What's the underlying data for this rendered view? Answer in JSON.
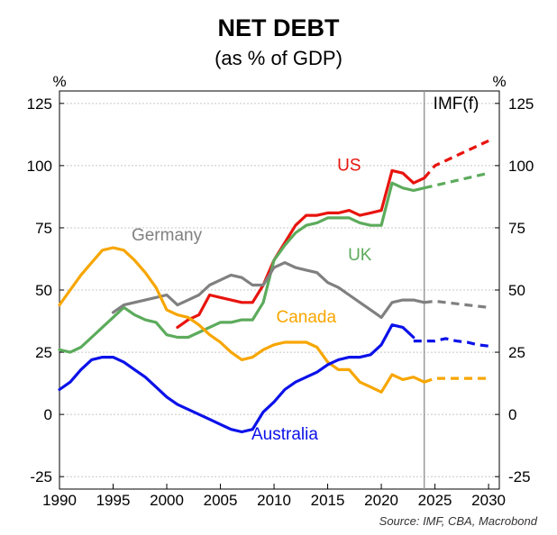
{
  "chart_data": {
    "type": "line",
    "title": "NET DEBT",
    "subtitle": "(as % of GDP)",
    "y_unit_left": "%",
    "y_unit_right": "%",
    "ylim": [
      -30,
      130
    ],
    "yticks": [
      125,
      100,
      75,
      50,
      25,
      0,
      -25
    ],
    "xlim": [
      1990,
      2031
    ],
    "xticks": [
      1990,
      1995,
      2000,
      2005,
      2010,
      2015,
      2020,
      2025,
      2030
    ],
    "grid": true,
    "forecast_start": 2024,
    "forecast_label": "IMF(f)",
    "source": "Source: IMF, CBA, Macrobond",
    "series": [
      {
        "name": "US",
        "color": "#e8140e",
        "label_at": [
          2017,
          98
        ],
        "x": [
          2001,
          2002,
          2003,
          2004,
          2005,
          2006,
          2007,
          2008,
          2009,
          2010,
          2011,
          2012,
          2013,
          2014,
          2015,
          2016,
          2017,
          2018,
          2019,
          2020,
          2021,
          2022,
          2023,
          2024
        ],
        "y": [
          35,
          38,
          40,
          48,
          47,
          46,
          45,
          45,
          52,
          62,
          69,
          76,
          80,
          80,
          81,
          81,
          82,
          80,
          81,
          82,
          98,
          97,
          93,
          95
        ],
        "forecast_x": [
          2024,
          2025,
          2026,
          2027,
          2028,
          2029,
          2030
        ],
        "forecast_y": [
          95,
          100,
          102,
          104,
          106,
          108,
          110
        ]
      },
      {
        "name": "UK",
        "color": "#5cab5c",
        "label_at": [
          2018,
          62
        ],
        "x": [
          1990,
          1991,
          1992,
          1993,
          1994,
          1995,
          1996,
          1997,
          1998,
          1999,
          2000,
          2001,
          2002,
          2003,
          2004,
          2005,
          2006,
          2007,
          2008,
          2009,
          2010,
          2011,
          2012,
          2013,
          2014,
          2015,
          2016,
          2017,
          2018,
          2019,
          2020,
          2021,
          2022,
          2023,
          2024
        ],
        "y": [
          26,
          25,
          27,
          31,
          35,
          39,
          43,
          40,
          38,
          37,
          32,
          31,
          31,
          33,
          35,
          37,
          37,
          38,
          38,
          45,
          62,
          68,
          73,
          76,
          77,
          79,
          79,
          79,
          77,
          76,
          76,
          93,
          91,
          90,
          91
        ],
        "forecast_x": [
          2024,
          2025,
          2026,
          2027,
          2028,
          2029,
          2030
        ],
        "forecast_y": [
          91,
          92,
          93,
          94,
          95,
          96,
          97
        ]
      },
      {
        "name": "Germany",
        "color": "#808080",
        "label_at": [
          2000,
          70
        ],
        "x": [
          1995,
          1996,
          1997,
          1998,
          1999,
          2000,
          2001,
          2002,
          2003,
          2004,
          2005,
          2006,
          2007,
          2008,
          2009,
          2010,
          2011,
          2012,
          2013,
          2014,
          2015,
          2016,
          2017,
          2018,
          2019,
          2020,
          2021,
          2022,
          2023,
          2024
        ],
        "y": [
          41,
          44,
          45,
          46,
          47,
          48,
          44,
          46,
          48,
          52,
          54,
          56,
          55,
          52,
          52,
          59,
          61,
          59,
          58,
          57,
          53,
          51,
          48,
          45,
          42,
          39,
          45,
          46,
          46,
          45
        ],
        "forecast_x": [
          2024,
          2025,
          2026,
          2027,
          2028,
          2029,
          2030
        ],
        "forecast_y": [
          45,
          45.5,
          45,
          44.5,
          44,
          43.5,
          43
        ]
      },
      {
        "name": "Canada",
        "color": "#f7a600",
        "label_at": [
          2013,
          37
        ],
        "x": [
          1990,
          1991,
          1992,
          1993,
          1994,
          1995,
          1996,
          1997,
          1998,
          1999,
          2000,
          2001,
          2002,
          2003,
          2004,
          2005,
          2006,
          2007,
          2008,
          2009,
          2010,
          2011,
          2012,
          2013,
          2014,
          2015,
          2016,
          2017,
          2018,
          2019,
          2020,
          2021,
          2022,
          2023,
          2024
        ],
        "y": [
          44,
          50,
          56,
          61,
          66,
          67,
          66,
          62,
          57,
          51,
          42,
          40,
          39,
          36,
          32,
          29,
          25,
          22,
          23,
          26,
          28,
          29,
          29,
          29,
          27,
          21,
          18,
          18,
          13,
          11,
          9,
          16,
          14,
          15,
          13
        ],
        "forecast_x": [
          2024,
          2025,
          2026,
          2027,
          2028,
          2029,
          2030
        ],
        "forecast_y": [
          13,
          14.5,
          14.5,
          14.5,
          14.5,
          14.5,
          14.5
        ]
      },
      {
        "name": "Australia",
        "color": "#0c12e8",
        "label_at": [
          2011,
          -10
        ],
        "x": [
          1990,
          1991,
          1992,
          1993,
          1994,
          1995,
          1996,
          1997,
          1998,
          1999,
          2000,
          2001,
          2002,
          2003,
          2004,
          2005,
          2006,
          2007,
          2008,
          2009,
          2010,
          2011,
          2012,
          2013,
          2014,
          2015,
          2016,
          2017,
          2018,
          2019,
          2020,
          2021,
          2022,
          2023
        ],
        "y": [
          10,
          13,
          18,
          22,
          23,
          23,
          21,
          18,
          15,
          11,
          7,
          4,
          2,
          0,
          -2,
          -4,
          -6,
          -7,
          -6,
          1,
          5,
          10,
          13,
          15,
          17,
          20,
          22,
          23,
          23,
          24,
          28,
          36,
          35,
          31
        ],
        "forecast_x": [
          2023,
          2024,
          2025,
          2026,
          2027,
          2028,
          2029,
          2030
        ],
        "forecast_y": [
          29.5,
          29.5,
          29.5,
          30.5,
          29.5,
          29,
          28,
          27.5
        ]
      }
    ]
  }
}
